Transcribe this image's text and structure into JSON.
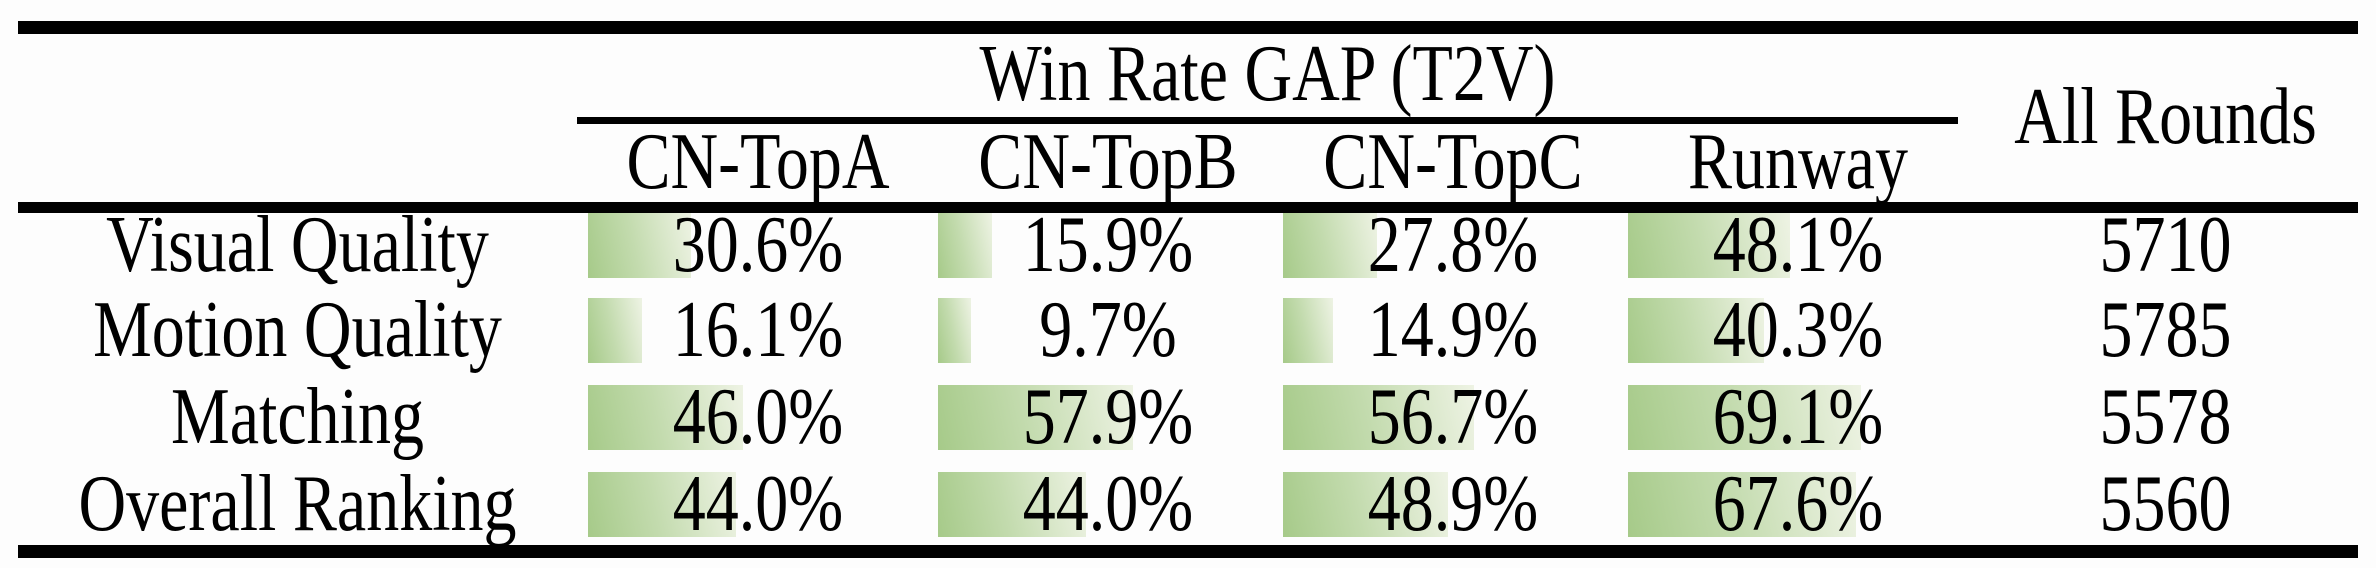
{
  "table": {
    "group_header": "Win Rate GAP (T2V)",
    "all_rounds_header": "All Rounds",
    "columns": [
      "CN-TopA",
      "CN-TopB",
      "CN-TopC",
      "Runway"
    ],
    "rows": [
      {
        "label": "Visual Quality",
        "values": [
          "30.6%",
          "15.9%",
          "27.8%",
          "48.1%"
        ],
        "pcts": [
          30.6,
          15.9,
          27.8,
          48.1
        ],
        "all_rounds": "5710"
      },
      {
        "label": "Motion Quality",
        "values": [
          "16.1%",
          "9.7%",
          "14.9%",
          "40.3%"
        ],
        "pcts": [
          16.1,
          9.7,
          14.9,
          40.3
        ],
        "all_rounds": "5785"
      },
      {
        "label": "Matching",
        "values": [
          "46.0%",
          "57.9%",
          "56.7%",
          "69.1%"
        ],
        "pcts": [
          46.0,
          57.9,
          56.7,
          69.1
        ],
        "all_rounds": "5578"
      },
      {
        "label": "Overall Ranking",
        "values": [
          "44.0%",
          "44.0%",
          "48.9%",
          "67.6%"
        ],
        "pcts": [
          44.0,
          44.0,
          48.9,
          67.6
        ],
        "all_rounds": "5560"
      }
    ]
  },
  "colors": {
    "bar_gradient_start": "#a6ca89",
    "bar_gradient_mid": "#c3dbae",
    "bar_gradient_end": "#eef3e4",
    "rule": "#000000",
    "background": "#fdfdfd",
    "text": "#000000"
  },
  "chart_data": {
    "type": "table",
    "title": "Win Rate GAP (T2V)",
    "categories": [
      "Visual Quality",
      "Motion Quality",
      "Matching",
      "Overall Ranking"
    ],
    "series": [
      {
        "name": "CN-TopA",
        "values": [
          30.6,
          16.1,
          46.0,
          44.0
        ]
      },
      {
        "name": "CN-TopB",
        "values": [
          15.9,
          9.7,
          57.9,
          44.0
        ]
      },
      {
        "name": "CN-TopC",
        "values": [
          27.8,
          14.9,
          56.7,
          48.9
        ]
      },
      {
        "name": "Runway",
        "values": [
          48.1,
          40.3,
          69.1,
          67.6
        ]
      }
    ],
    "all_rounds_column": {
      "name": "All Rounds",
      "values": [
        5710,
        5785,
        5578,
        5560
      ]
    },
    "unit": "%",
    "notes": "Cells contain data bars whose length is proportional to the win-rate percentage (0-100%)."
  }
}
